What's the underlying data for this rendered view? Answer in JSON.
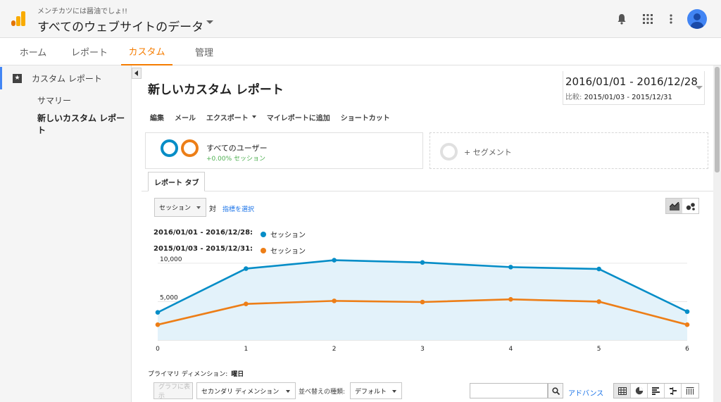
{
  "header": {
    "account_sub": "メンチカツには醤油でしょ!!",
    "property_title": "すべてのウェブサイトのデータ",
    "icons": [
      "notifications-icon",
      "apps-icon",
      "more-vert-icon",
      "account-avatar-icon"
    ]
  },
  "tabs": [
    {
      "label": "ホーム",
      "active": false
    },
    {
      "label": "レポート",
      "active": false
    },
    {
      "label": "カスタム",
      "active": true
    },
    {
      "label": "管理",
      "active": false
    }
  ],
  "sidebar": {
    "section_label": "カスタム レポート",
    "items": [
      {
        "label": "サマリー",
        "selected": false
      },
      {
        "label": "新しいカスタム レポート",
        "selected": true
      }
    ]
  },
  "report": {
    "title": "新しいカスタム レポート",
    "date_range": "2016/01/01 - 2016/12/28",
    "compare_label": "比較:",
    "compare_range": "2015/01/03 - 2015/12/31",
    "actions": [
      "編集",
      "メール",
      "エクスポート",
      "マイレポートに追加",
      "ショートカット"
    ],
    "segment": {
      "title": "すべてのユーザー",
      "sub": "+0.00% セッション"
    },
    "add_segment": "+ セグメント",
    "report_tab": "レポート タブ",
    "metric_select": "セッション",
    "vs_label": "対",
    "pick_metric": "指標を選択",
    "legend": [
      {
        "range": "2016/01/01 - 2016/12/28:",
        "series": "セッション",
        "color": "#058dc7"
      },
      {
        "range": "2015/01/03 - 2015/12/31:",
        "series": "セッション",
        "color": "#ed7e17"
      }
    ],
    "primary_dimension_label": "プライマリ ディメンション:",
    "primary_dimension_value": "曜日",
    "controls": {
      "plot_rows": "グラフに表示",
      "secondary_dimension": "セカンダリ ディメンション",
      "sort_label": "並べ替えの種類:",
      "sort_value": "デフォルト",
      "advanced": "アドバンス"
    }
  },
  "chart_data": {
    "type": "line",
    "x": [
      0,
      1,
      2,
      3,
      4,
      5,
      6
    ],
    "x_tick_labels": [
      "0",
      "1",
      "2",
      "3",
      "4",
      "5",
      "6"
    ],
    "y_tick_labels": [
      "5,000",
      "10,000"
    ],
    "ylim": [
      0,
      11000
    ],
    "grid": true,
    "series": [
      {
        "name": "セッション",
        "values": [
          3600,
          9300,
          10400,
          10100,
          9500,
          9250,
          3700
        ],
        "color": "#058dc7",
        "fill": true
      },
      {
        "name": "セッション",
        "values": [
          2000,
          4700,
          5100,
          4950,
          5300,
          5000,
          2000
        ],
        "color": "#ed7e17",
        "fill": false
      }
    ]
  }
}
